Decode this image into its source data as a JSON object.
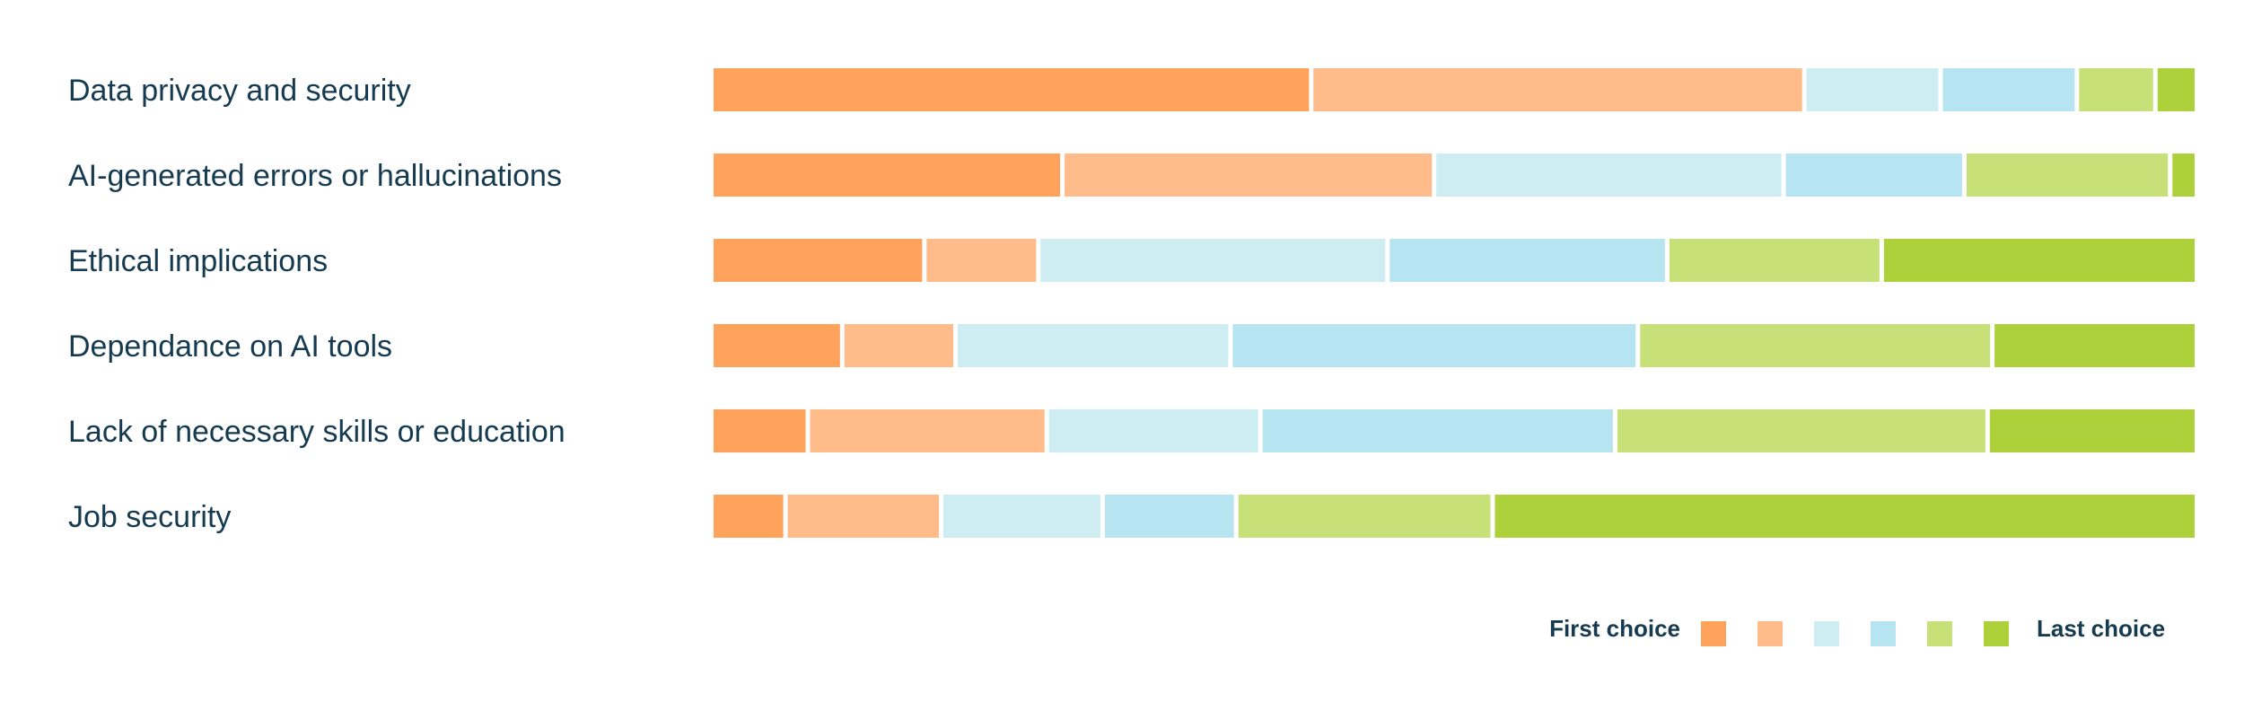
{
  "chart_data": {
    "type": "bar",
    "orientation": "horizontal",
    "stacked": true,
    "normalized": true,
    "categories": [
      "Data privacy and security",
      "AI-generated errors or hallucinations",
      "Ethical implications",
      "Dependance on AI tools",
      "Lack of necessary skills or education",
      "Job security"
    ],
    "series": [
      {
        "values": [
          40.5,
          23.7,
          14.4,
          8.9,
          6.5,
          5.0
        ]
      },
      {
        "values": [
          33.3,
          25.1,
          7.7,
          7.7,
          16.1,
          10.5
        ]
      },
      {
        "values": [
          9.2,
          23.6,
          23.6,
          18.7,
          14.4,
          10.9
        ]
      },
      {
        "values": [
          9.2,
          12.2,
          18.9,
          27.7,
          23.9,
          9.0
        ]
      },
      {
        "values": [
          5.3,
          13.9,
          14.5,
          24.1,
          25.1,
          17.3
        ]
      },
      {
        "values": [
          2.5,
          1.5,
          21.0,
          13.6,
          13.8,
          47.2
        ]
      }
    ],
    "colors": [
      "#ffa25c",
      "#ffbc8a",
      "#ceedf3",
      "#b6e4f0",
      "#c8e078",
      "#acd13b"
    ],
    "xlim": [
      0,
      100
    ],
    "axes_visible": false,
    "grid": false,
    "legend": {
      "position": "bottom-right",
      "start_label": "First choice",
      "end_label": "Last choice"
    }
  }
}
